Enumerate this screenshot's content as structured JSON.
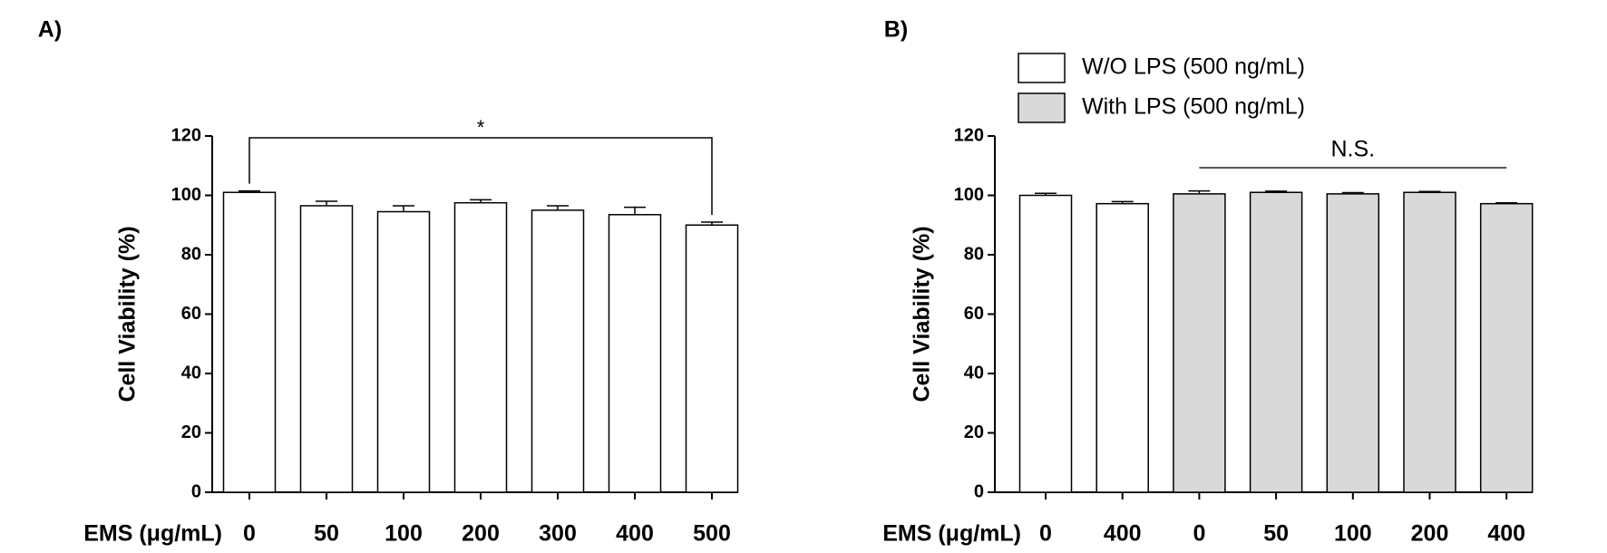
{
  "chart_data": [
    {
      "type": "bar",
      "panel": "A)",
      "ylabel": "Cell Viability (%)",
      "xlabel": "EMS (μg/mL)",
      "categories": [
        "0",
        "50",
        "100",
        "200",
        "300",
        "400",
        "500"
      ],
      "series": [
        {
          "name": null,
          "color": "#ffffff",
          "values": [
            101,
            96.5,
            94.5,
            97.5,
            95,
            93.5,
            90
          ],
          "errors": [
            0.5,
            1.5,
            2,
            1,
            1.5,
            2.5,
            1
          ]
        }
      ],
      "annotation": "*",
      "ylim": [
        0,
        120
      ],
      "yticks": [
        0,
        20,
        40,
        60,
        80,
        100,
        120
      ]
    },
    {
      "type": "bar",
      "panel": "B)",
      "ylabel": "Cell Viability (%)",
      "xlabel": "EMS (μg/mL)",
      "categories": [
        "0",
        "400",
        "0",
        "50",
        "100",
        "200",
        "400"
      ],
      "series": [
        {
          "name": "W/O LPS (500 ng/mL)",
          "color": "#ffffff",
          "values": [
            100,
            97.2,
            null,
            null,
            null,
            null,
            null
          ],
          "errors": [
            0.7,
            0.7,
            null,
            null,
            null,
            null,
            null
          ]
        },
        {
          "name": "With LPS (500 ng/mL)",
          "color": "#d9d9d9",
          "values": [
            null,
            null,
            100.5,
            101,
            100.5,
            101,
            97.2
          ],
          "errors": [
            null,
            null,
            1,
            0.4,
            0.4,
            0.3,
            0.3
          ]
        }
      ],
      "annotation": "N.S.",
      "ylim": [
        0,
        120
      ],
      "yticks": [
        0,
        20,
        40,
        60,
        80,
        100,
        120
      ]
    }
  ]
}
